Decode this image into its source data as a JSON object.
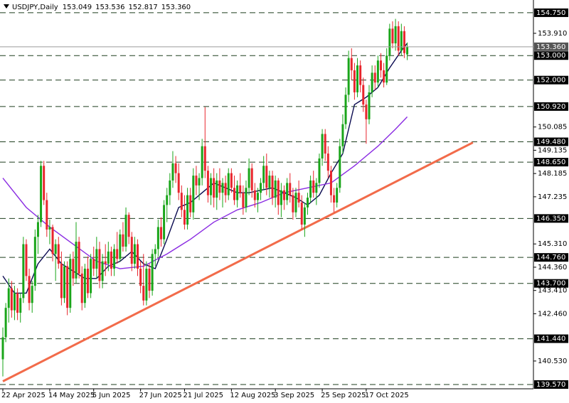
{
  "chart_data": {
    "type": "candlestick",
    "title": "USDJPY,Daily",
    "header_ohlc": [
      153.049,
      153.536,
      152.817,
      {
        "value": 153.36,
        "label": "153.360"
      }
    ],
    "up_color": "#1aa51a",
    "down_color": "#e8262d",
    "ylim": [
      139.396,
      155.27
    ],
    "yticks": [
      {
        "value": 153.91,
        "label": "153.910"
      },
      150.085,
      149.135,
      148.185,
      147.235,
      {
        "value": 145.31,
        "label": "145.310"
      },
      {
        "value": 144.36,
        "label": "144.360"
      },
      {
        "value": 143.41,
        "label": "143.410"
      },
      {
        "value": 142.46,
        "label": "142.460"
      },
      {
        "value": 140.53,
        "label": "140.530"
      }
    ],
    "levels": [
      {
        "value": 154.75,
        "label": "154.750"
      },
      {
        "value": 153,
        "label": "153.000"
      },
      {
        "value": 152,
        "label": "152.000"
      },
      {
        "value": 150.92,
        "label": "150.920"
      },
      {
        "value": 149.48,
        "label": "149.480"
      },
      {
        "value": 148.65,
        "label": "148.650"
      },
      {
        "value": 146.35,
        "label": "146.350"
      },
      {
        "value": 144.76,
        "label": "144.760"
      },
      {
        "value": 143.7,
        "label": "143.700"
      },
      {
        "value": 141.44,
        "label": "141.440"
      },
      {
        "value": 139.57,
        "label": "139.570"
      }
    ],
    "level_color": "#1f3f1f",
    "current_price": {
      "value": 153.36,
      "label": "153.360"
    },
    "categories": [
      "22 Apr 2025",
      null,
      null,
      null,
      null,
      null,
      null,
      null,
      null,
      null,
      null,
      null,
      null,
      null,
      null,
      null,
      "14 May 2025",
      null,
      null,
      null,
      null,
      null,
      null,
      null,
      null,
      null,
      null,
      null,
      null,
      null,
      null,
      "5 Jun 2025",
      null,
      null,
      null,
      null,
      null,
      null,
      null,
      null,
      null,
      null,
      null,
      null,
      null,
      null,
      null,
      "27 Jun 2025",
      null,
      null,
      null,
      null,
      null,
      null,
      null,
      null,
      null,
      null,
      null,
      null,
      null,
      null,
      "21 Jul 2025",
      null,
      null,
      null,
      null,
      null,
      null,
      null,
      null,
      null,
      null,
      null,
      null,
      null,
      null,
      null,
      "12 Aug 2025",
      null,
      null,
      null,
      null,
      null,
      null,
      null,
      null,
      null,
      null,
      null,
      null,
      null,
      null,
      "3 Sep 2025",
      null,
      null,
      null,
      null,
      null,
      null,
      null,
      null,
      null,
      null,
      null,
      null,
      null,
      null,
      null,
      "25 Sep 2025",
      null,
      null,
      null,
      null,
      null,
      null,
      null,
      null,
      null,
      null,
      null,
      null,
      null,
      null,
      "17 Oct 2025",
      null,
      null,
      null,
      null,
      null,
      null,
      null,
      null,
      null,
      null,
      null,
      null,
      null,
      null
    ],
    "ohlc": [
      [
        140.6,
        141.9,
        139.9,
        141.5
      ],
      [
        141.5,
        142.9,
        141.3,
        142.7
      ],
      [
        142.7,
        143.9,
        142.1,
        143.5
      ],
      [
        143.5,
        143.8,
        142.3,
        142.6
      ],
      [
        142.6,
        143.6,
        142.2,
        143.3
      ],
      [
        143.3,
        143.5,
        142.2,
        142.5
      ],
      [
        142.5,
        143.3,
        142.1,
        143.1
      ],
      [
        143.1,
        145.6,
        142.9,
        145.3
      ],
      [
        145.3,
        145.5,
        143.8,
        144.0
      ],
      [
        144.0,
        144.3,
        142.6,
        142.9
      ],
      [
        142.9,
        143.8,
        142.5,
        143.6
      ],
      [
        143.6,
        145.9,
        143.4,
        145.6
      ],
      [
        145.6,
        146.5,
        144.9,
        146.2
      ],
      [
        146.2,
        148.7,
        146.0,
        148.5
      ],
      [
        148.5,
        148.7,
        146.9,
        147.1
      ],
      [
        147.1,
        147.4,
        145.6,
        145.9
      ],
      [
        145.9,
        146.3,
        145.3,
        146.0
      ],
      [
        146.0,
        146.1,
        144.6,
        144.9
      ],
      [
        144.9,
        145.5,
        143.8,
        145.3
      ],
      [
        145.3,
        145.6,
        144.3,
        144.5
      ],
      [
        144.5,
        145.0,
        142.8,
        143.1
      ],
      [
        143.1,
        144.6,
        142.9,
        144.4
      ],
      [
        144.4,
        144.6,
        142.4,
        142.7
      ],
      [
        142.7,
        144.9,
        142.5,
        144.7
      ],
      [
        144.7,
        145.0,
        143.6,
        143.9
      ],
      [
        143.9,
        146.2,
        143.7,
        145.4
      ],
      [
        145.4,
        145.6,
        143.9,
        144.1
      ],
      [
        144.1,
        144.4,
        142.6,
        142.9
      ],
      [
        142.9,
        144.5,
        142.7,
        144.3
      ],
      [
        144.3,
        144.8,
        143.1,
        143.3
      ],
      [
        143.3,
        144.9,
        143.1,
        144.7
      ],
      [
        144.7,
        145.2,
        144.0,
        144.3
      ],
      [
        144.3,
        145.6,
        143.9,
        145.1
      ],
      [
        145.1,
        145.4,
        143.5,
        143.8
      ],
      [
        143.8,
        144.9,
        143.5,
        144.6
      ],
      [
        144.6,
        145.3,
        144.0,
        144.5
      ],
      [
        144.5,
        145.4,
        144.2,
        145.0
      ],
      [
        145.0,
        145.2,
        144.0,
        144.3
      ],
      [
        144.3,
        145.3,
        144.0,
        145.1
      ],
      [
        145.1,
        145.8,
        144.5,
        144.7
      ],
      [
        144.7,
        145.9,
        144.6,
        145.7
      ],
      [
        145.7,
        146.2,
        145.0,
        145.2
      ],
      [
        145.2,
        146.8,
        145.0,
        146.5
      ],
      [
        146.5,
        146.6,
        145.3,
        145.6
      ],
      [
        145.6,
        145.8,
        144.2,
        144.5
      ],
      [
        144.5,
        145.6,
        144.3,
        145.3
      ],
      [
        145.3,
        145.5,
        144.0,
        144.3
      ],
      [
        144.3,
        144.6,
        143.3,
        143.6
      ],
      [
        143.6,
        144.9,
        142.8,
        143.0
      ],
      [
        143.0,
        144.6,
        142.8,
        144.3
      ],
      [
        144.3,
        144.5,
        143.1,
        143.4
      ],
      [
        143.4,
        145.1,
        143.2,
        144.9
      ],
      [
        144.9,
        145.3,
        144.4,
        145.1
      ],
      [
        145.1,
        146.3,
        144.8,
        146.0
      ],
      [
        146.0,
        146.4,
        145.2,
        145.5
      ],
      [
        145.5,
        147.1,
        145.3,
        146.9
      ],
      [
        146.9,
        147.6,
        146.2,
        147.3
      ],
      [
        147.3,
        148.2,
        146.9,
        147.9
      ],
      [
        147.9,
        149.1,
        147.6,
        148.6
      ],
      [
        148.6,
        148.9,
        147.8,
        148.2
      ],
      [
        148.2,
        148.6,
        147.1,
        147.4
      ],
      [
        147.4,
        147.7,
        146.4,
        146.7
      ],
      [
        146.7,
        147.3,
        145.9,
        146.1
      ],
      [
        146.1,
        147.6,
        145.9,
        147.3
      ],
      [
        147.3,
        147.6,
        146.4,
        146.6
      ],
      [
        146.6,
        148.4,
        146.3,
        148.1
      ],
      [
        148.1,
        148.5,
        147.3,
        147.7
      ],
      [
        147.7,
        148.2,
        147.1,
        148.0
      ],
      [
        148.0,
        149.6,
        147.7,
        149.3
      ],
      [
        149.3,
        150.9,
        148.0,
        148.3
      ],
      [
        148.3,
        148.5,
        147.0,
        147.3
      ],
      [
        147.3,
        148.2,
        146.9,
        148.0
      ],
      [
        148.0,
        148.4,
        146.8,
        147.2
      ],
      [
        147.2,
        148.2,
        146.7,
        147.9
      ],
      [
        147.9,
        148.4,
        147.1,
        147.4
      ],
      [
        147.4,
        148.0,
        146.8,
        147.8
      ],
      [
        147.8,
        148.1,
        147.0,
        147.3
      ],
      [
        147.3,
        148.4,
        147.1,
        148.2
      ],
      [
        148.2,
        148.4,
        147.4,
        147.6
      ],
      [
        147.6,
        148.1,
        146.9,
        147.1
      ],
      [
        147.1,
        147.9,
        146.8,
        147.7
      ],
      [
        147.7,
        148.2,
        147.2,
        147.4
      ],
      [
        147.4,
        147.7,
        146.5,
        146.8
      ],
      [
        146.8,
        147.9,
        146.6,
        147.6
      ],
      [
        147.6,
        148.8,
        147.3,
        148.4
      ],
      [
        148.4,
        148.6,
        147.2,
        147.5
      ],
      [
        147.5,
        147.8,
        146.8,
        147.1
      ],
      [
        147.1,
        147.6,
        146.6,
        147.4
      ],
      [
        147.4,
        148.0,
        147.1,
        147.8
      ],
      [
        147.8,
        148.9,
        147.5,
        148.5
      ],
      [
        148.5,
        149.0,
        147.3,
        147.6
      ],
      [
        147.6,
        148.3,
        147.2,
        148.1
      ],
      [
        148.1,
        148.3,
        146.9,
        147.2
      ],
      [
        147.2,
        148.1,
        146.8,
        147.9
      ],
      [
        147.9,
        148.0,
        146.5,
        146.9
      ],
      [
        146.9,
        147.8,
        146.4,
        147.5
      ],
      [
        147.5,
        147.7,
        146.7,
        147.1
      ],
      [
        147.1,
        148.0,
        146.9,
        147.8
      ],
      [
        147.8,
        148.2,
        147.0,
        147.3
      ],
      [
        147.3,
        147.6,
        146.3,
        146.6
      ],
      [
        146.6,
        147.6,
        146.4,
        147.4
      ],
      [
        147.4,
        147.9,
        146.8,
        147.0
      ],
      [
        147.0,
        147.3,
        145.9,
        146.1
      ],
      [
        146.1,
        147.0,
        145.6,
        146.8
      ],
      [
        146.8,
        147.4,
        146.5,
        147.2
      ],
      [
        147.2,
        148.1,
        147.0,
        147.9
      ],
      [
        147.9,
        148.3,
        147.2,
        147.4
      ],
      [
        147.4,
        148.0,
        146.9,
        147.8
      ],
      [
        147.8,
        149.0,
        147.6,
        148.8
      ],
      [
        148.8,
        150.0,
        148.5,
        149.8
      ],
      [
        149.8,
        150.0,
        148.7,
        149.0
      ],
      [
        149.0,
        149.3,
        148.0,
        148.3
      ],
      [
        148.3,
        148.5,
        147.0,
        147.3
      ],
      [
        147.3,
        147.6,
        146.6,
        147.0
      ],
      [
        147.0,
        147.8,
        146.8,
        147.6
      ],
      [
        147.6,
        149.6,
        147.4,
        149.3
      ],
      [
        149.3,
        150.6,
        149.0,
        150.2
      ],
      [
        150.2,
        151.7,
        150.0,
        151.4
      ],
      [
        151.4,
        153.2,
        151.1,
        152.9
      ],
      [
        152.9,
        153.3,
        152.0,
        152.4
      ],
      [
        152.4,
        152.7,
        151.2,
        151.5
      ],
      [
        151.5,
        152.9,
        151.3,
        152.6
      ],
      [
        152.6,
        152.8,
        151.5,
        151.8
      ],
      [
        151.8,
        152.1,
        150.7,
        151.0
      ],
      [
        151.0,
        151.2,
        149.4,
        150.4
      ],
      [
        150.4,
        151.8,
        150.2,
        151.5
      ],
      [
        151.5,
        152.6,
        151.3,
        152.3
      ],
      [
        152.3,
        152.6,
        151.6,
        151.9
      ],
      [
        151.9,
        153.0,
        151.7,
        152.8
      ],
      [
        152.8,
        153.1,
        152.1,
        152.4
      ],
      [
        152.4,
        152.7,
        151.7,
        151.9
      ],
      [
        151.9,
        153.3,
        151.8,
        153.0
      ],
      [
        153.0,
        154.3,
        152.8,
        154.1
      ],
      [
        154.1,
        154.4,
        153.3,
        153.5
      ],
      [
        153.5,
        154.5,
        153.2,
        154.2
      ],
      [
        154.2,
        154.4,
        153.0,
        153.2
      ],
      [
        153.2,
        154.3,
        153.0,
        154.0
      ],
      [
        154.0,
        154.2,
        152.9,
        153.1
      ],
      [
        153.049,
        153.536,
        152.817,
        153.36
      ]
    ],
    "lines": [
      {
        "color": "#0a0a50",
        "x": [
          0,
          4,
          8,
          12,
          16,
          20,
          24,
          28,
          32,
          36,
          40,
          44,
          48,
          52,
          56,
          60,
          64,
          68,
          72,
          76,
          80,
          84,
          88,
          92,
          96,
          100,
          104,
          108,
          112,
          116,
          120,
          124,
          128,
          132,
          136,
          138
        ],
        "values": [
          144.0,
          143.3,
          143.3,
          144.5,
          145.1,
          144.5,
          144.2,
          143.9,
          143.9,
          144.4,
          144.6,
          145.0,
          144.5,
          144.3,
          145.5,
          146.8,
          147.0,
          147.4,
          147.8,
          147.6,
          147.4,
          147.4,
          147.5,
          147.6,
          147.4,
          147.2,
          146.9,
          147.3,
          148.2,
          149.0,
          151.0,
          151.3,
          151.7,
          152.5,
          153.2,
          153.5
        ]
      },
      {
        "color": "#8a2be2",
        "x": [
          0,
          8,
          16,
          24,
          32,
          40,
          48,
          56,
          64,
          72,
          80,
          88,
          96,
          104,
          112,
          120,
          128,
          134,
          138
        ],
        "values": [
          148.0,
          146.8,
          146.0,
          145.3,
          144.6,
          144.3,
          144.4,
          144.9,
          145.5,
          146.2,
          146.7,
          147.0,
          147.4,
          147.6,
          147.8,
          148.5,
          149.3,
          150.0,
          150.5
        ]
      }
    ],
    "trendline": {
      "color": "#f26b4a",
      "x": [
        0,
        160.4
      ],
      "values": [
        139.7,
        149.45
      ]
    }
  }
}
